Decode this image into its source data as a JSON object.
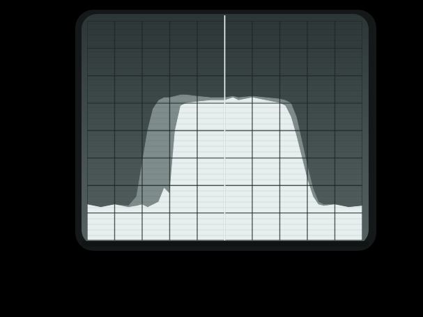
{
  "chart_data": {
    "type": "area",
    "grid": true,
    "tick_labels": false,
    "xlim": [
      0,
      10
    ],
    "xticks": [
      0,
      1,
      2,
      3,
      4,
      5,
      6,
      7,
      8,
      9,
      10
    ],
    "ylim": [
      0,
      8
    ],
    "yticks": [
      0,
      1,
      2,
      3,
      4,
      5,
      6,
      7,
      8
    ],
    "x": [
      0,
      0.5,
      1,
      1.5,
      1.8,
      2.0,
      2.2,
      2.4,
      2.6,
      2.8,
      3.0,
      3.2,
      3.4,
      3.6,
      4,
      4.5,
      5,
      5.3,
      5.5,
      6,
      6.5,
      7,
      7.2,
      7.4,
      7.6,
      7.8,
      8.0,
      8.2,
      8.4,
      8.6,
      9,
      9.5,
      10
    ],
    "series": [
      {
        "color": "#7f8c8c",
        "values": [
          1.3,
          1.2,
          1.3,
          1.25,
          1.6,
          2.8,
          4.0,
          4.8,
          5.1,
          5.2,
          5.2,
          5.25,
          5.3,
          5.3,
          5.25,
          5.2,
          5.2,
          5.25,
          5.2,
          5.25,
          5.2,
          5.15,
          5.1,
          5.0,
          4.5,
          3.6,
          2.7,
          1.9,
          1.4,
          1.3,
          1.3,
          1.2,
          1.25
        ]
      },
      {
        "color": "#e6eeee",
        "values": [
          1.3,
          1.2,
          1.3,
          1.2,
          1.25,
          1.3,
          1.2,
          1.3,
          1.4,
          1.9,
          1.7,
          4.0,
          4.9,
          5.0,
          5.05,
          5.1,
          5.1,
          5.2,
          5.1,
          5.2,
          5.1,
          5.0,
          4.9,
          4.5,
          3.8,
          3.0,
          2.2,
          1.6,
          1.3,
          1.25,
          1.3,
          1.2,
          1.25
        ]
      }
    ]
  }
}
